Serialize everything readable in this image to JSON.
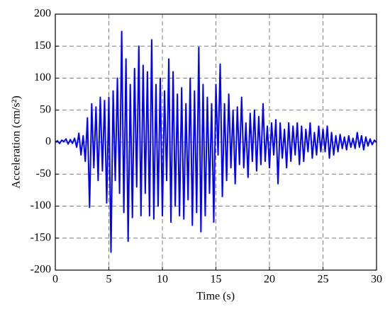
{
  "chart_data": {
    "type": "line",
    "xlabel": "Time (s)",
    "ylabel": "Acceleration (cm/s²)",
    "xlim": [
      0,
      30
    ],
    "ylim": [
      -200,
      200
    ],
    "xticks": [
      0,
      5,
      10,
      15,
      20,
      25,
      30
    ],
    "yticks": [
      -200,
      -150,
      -100,
      -50,
      0,
      50,
      100,
      150,
      200
    ],
    "grid": true,
    "x": [
      0,
      0.2,
      0.4,
      0.6,
      0.8,
      1,
      1.2,
      1.4,
      1.6,
      1.8,
      2,
      2.2,
      2.4,
      2.6,
      2.8,
      3,
      3.2,
      3.4,
      3.6,
      3.8,
      4,
      4.2,
      4.4,
      4.6,
      4.8,
      5,
      5.2,
      5.4,
      5.6,
      5.8,
      6,
      6.2,
      6.4,
      6.6,
      6.8,
      7,
      7.2,
      7.4,
      7.6,
      7.8,
      8,
      8.2,
      8.4,
      8.6,
      8.8,
      9,
      9.2,
      9.4,
      9.6,
      9.8,
      10,
      10.2,
      10.4,
      10.6,
      10.8,
      11,
      11.2,
      11.4,
      11.6,
      11.8,
      12,
      12.2,
      12.4,
      12.6,
      12.8,
      13,
      13.2,
      13.4,
      13.6,
      13.8,
      14,
      14.2,
      14.4,
      14.6,
      14.8,
      15,
      15.2,
      15.4,
      15.6,
      15.8,
      16,
      16.2,
      16.4,
      16.6,
      16.8,
      17,
      17.2,
      17.4,
      17.6,
      17.8,
      18,
      18.2,
      18.4,
      18.6,
      18.8,
      19,
      19.2,
      19.4,
      19.6,
      19.8,
      20,
      20.2,
      20.4,
      20.6,
      20.8,
      21,
      21.2,
      21.4,
      21.6,
      21.8,
      22,
      22.2,
      22.4,
      22.6,
      22.8,
      23,
      23.2,
      23.4,
      23.6,
      23.8,
      24,
      24.2,
      24.4,
      24.6,
      24.8,
      25,
      25.2,
      25.4,
      25.6,
      25.8,
      26,
      26.2,
      26.4,
      26.6,
      26.8,
      27,
      27.2,
      27.4,
      27.6,
      27.8,
      28,
      28.2,
      28.4,
      28.6,
      28.8,
      29,
      29.2,
      29.4,
      29.6,
      29.8,
      30
    ],
    "series": [
      {
        "color": "#0000ff",
        "values": [
          0,
          2,
          -2,
          3,
          1,
          5,
          -3,
          4,
          -2,
          6,
          -8,
          14,
          -20,
          10,
          -30,
          38,
          -102,
          60,
          -40,
          55,
          -60,
          70,
          -45,
          65,
          -95,
          70,
          -172,
          80,
          -60,
          100,
          -80,
          173,
          -110,
          130,
          -155,
          90,
          -118,
          115,
          -70,
          150,
          -115,
          120,
          -80,
          110,
          -115,
          160,
          -120,
          90,
          -100,
          100,
          -115,
          80,
          -60,
          130,
          -125,
          110,
          -100,
          75,
          -115,
          85,
          -120,
          60,
          -90,
          100,
          -130,
          80,
          -110,
          148,
          -140,
          90,
          -115,
          70,
          -80,
          60,
          -125,
          90,
          -20,
          122,
          -85,
          60,
          -60,
          75,
          -40,
          50,
          -65,
          55,
          -35,
          70,
          -40,
          30,
          -55,
          45,
          -30,
          50,
          -45,
          40,
          -35,
          60,
          -30,
          25,
          -40,
          30,
          -20,
          35,
          -65,
          30,
          -25,
          20,
          -40,
          30,
          -30,
          25,
          -20,
          30,
          -35,
          25,
          -30,
          20,
          -15,
          30,
          -25,
          15,
          -20,
          25,
          -15,
          20,
          -15,
          25,
          -25,
          15,
          -20,
          10,
          -15,
          12,
          -10,
          8,
          -12,
          10,
          -8,
          6,
          -10,
          15,
          -8,
          10,
          -12,
          8,
          -6,
          5,
          -4,
          3,
          0
        ]
      }
    ]
  }
}
